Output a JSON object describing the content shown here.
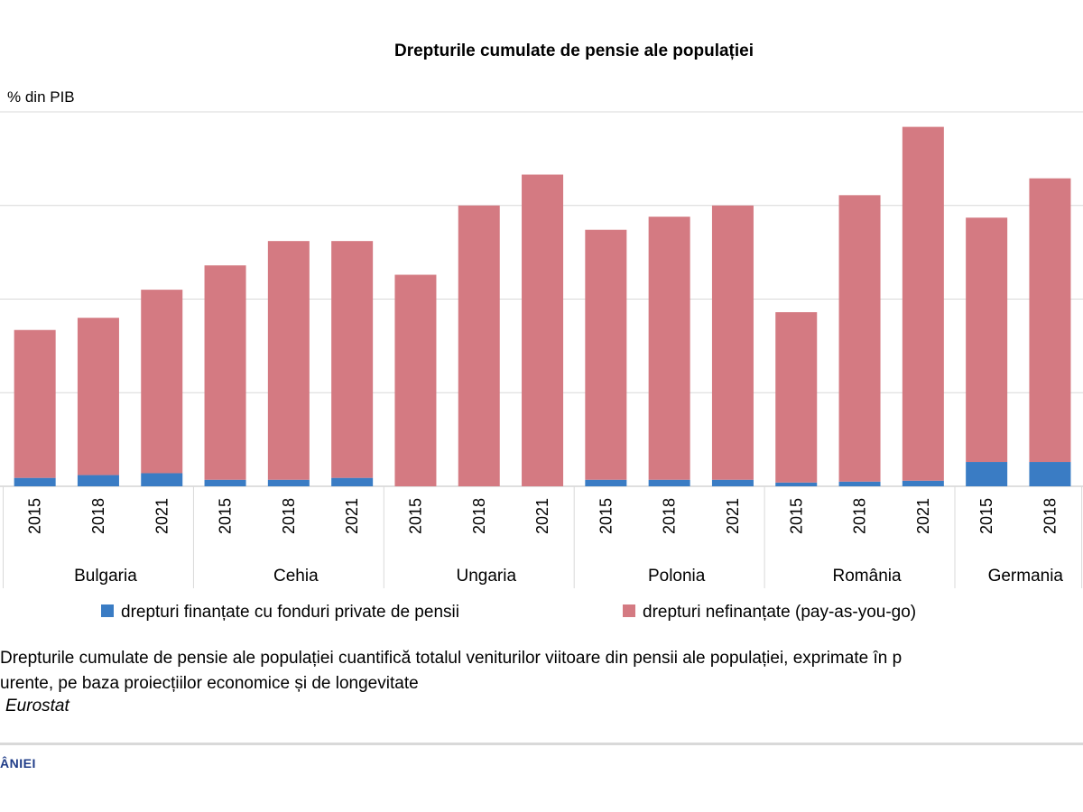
{
  "chart_data": {
    "type": "bar",
    "stacked": true,
    "title": "Drepturile cumulate de pensie ale populației",
    "ylabel": "% din PIB",
    "ylim": [
      0,
      400
    ],
    "yticks": [
      0,
      100,
      200,
      300,
      400
    ],
    "grid": true,
    "legend_position": "bottom",
    "groups": [
      {
        "name": "Bulgaria",
        "years": [
          "2015",
          "2018",
          "2021"
        ]
      },
      {
        "name": "Cehia",
        "years": [
          "2015",
          "2018",
          "2021"
        ]
      },
      {
        "name": "Ungaria",
        "years": [
          "2015",
          "2018",
          "2021"
        ]
      },
      {
        "name": "Polonia",
        "years": [
          "2015",
          "2018",
          "2021"
        ]
      },
      {
        "name": "România",
        "years": [
          "2015",
          "2018",
          "2021"
        ]
      },
      {
        "name": "Germania",
        "years": [
          "2015",
          "2018"
        ]
      }
    ],
    "series": [
      {
        "name": "drepturi finanțate cu fonduri private de pensii",
        "color": "#3a7cc4",
        "values": [
          9,
          12,
          14,
          7,
          7,
          9,
          0,
          0,
          0,
          7,
          7,
          7,
          4,
          5,
          6,
          26,
          26
        ]
      },
      {
        "name": "drepturi nefinanțate (pay-as-you-go)",
        "color": "#d47a82",
        "values": [
          158,
          168,
          196,
          229,
          255,
          253,
          226,
          300,
          333,
          267,
          281,
          293,
          182,
          306,
          378,
          261,
          303
        ]
      }
    ]
  },
  "legend": {
    "funded_label": "drepturi  finanțate cu fonduri  private de pensii",
    "unfunded_label": "drepturi  nefinanțate (pay-as-you-go)",
    "funded_color": "#3a7cc4",
    "unfunded_color": "#d47a82"
  },
  "note": {
    "line1": "Drepturile  cumulate de pensie ale populației  cuantifică totalul veniturilor viitoare din pensii ale populației,  exprimate în p",
    "line2": "urente,  pe baza proiecțiilor economice și de longevitate"
  },
  "source": "Eurostat",
  "footer": {
    "brand_fragment": "ÂNIEI"
  }
}
